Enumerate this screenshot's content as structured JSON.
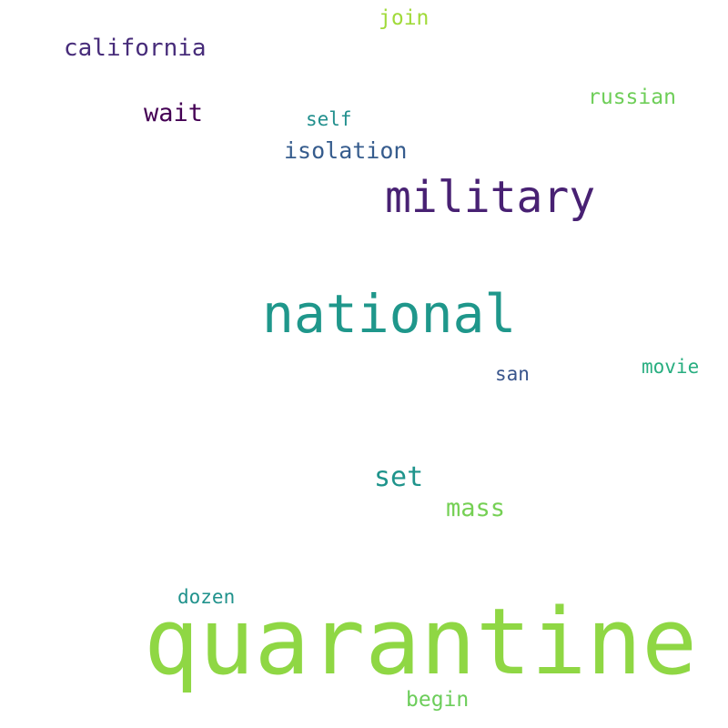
{
  "colors": {
    "background": "#ffffff"
  },
  "words": [
    {
      "text": "quarantine",
      "color": "#8fd744"
    },
    {
      "text": "national",
      "color": "#1f978b"
    },
    {
      "text": "military",
      "color": "#482173"
    },
    {
      "text": "california",
      "color": "#472c7a"
    },
    {
      "text": "wait",
      "color": "#440154"
    },
    {
      "text": "isolation",
      "color": "#365c8d"
    },
    {
      "text": "self",
      "color": "#218f8d"
    },
    {
      "text": "join",
      "color": "#a0da39"
    },
    {
      "text": "russian",
      "color": "#6ece58"
    },
    {
      "text": "set",
      "color": "#1f948c"
    },
    {
      "text": "mass",
      "color": "#75d054"
    },
    {
      "text": "san",
      "color": "#39558c"
    },
    {
      "text": "movie",
      "color": "#28ae80"
    },
    {
      "text": "dozen",
      "color": "#20928c"
    },
    {
      "text": "begin",
      "color": "#6ccd5a"
    }
  ]
}
